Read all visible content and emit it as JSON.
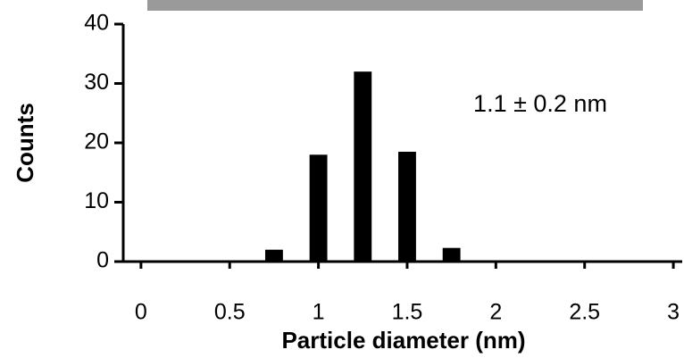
{
  "chart_data": {
    "type": "bar",
    "x": [
      0.75,
      1,
      1.25,
      1.5,
      1.75
    ],
    "values": [
      2,
      18,
      32,
      18.5,
      2.3
    ],
    "color": "#000000",
    "bar_width": 0.1,
    "xlabel": "Particle diameter (nm)",
    "ylabel": "Counts",
    "annotation": "1.1 ± 0.2 nm",
    "xlim": [
      -0.1,
      3.05
    ],
    "xticks": [
      0,
      0.5,
      1,
      1.5,
      2,
      2.5,
      3
    ],
    "ylim": [
      0,
      40
    ],
    "yticks": [
      0,
      10,
      20,
      30,
      40
    ]
  }
}
